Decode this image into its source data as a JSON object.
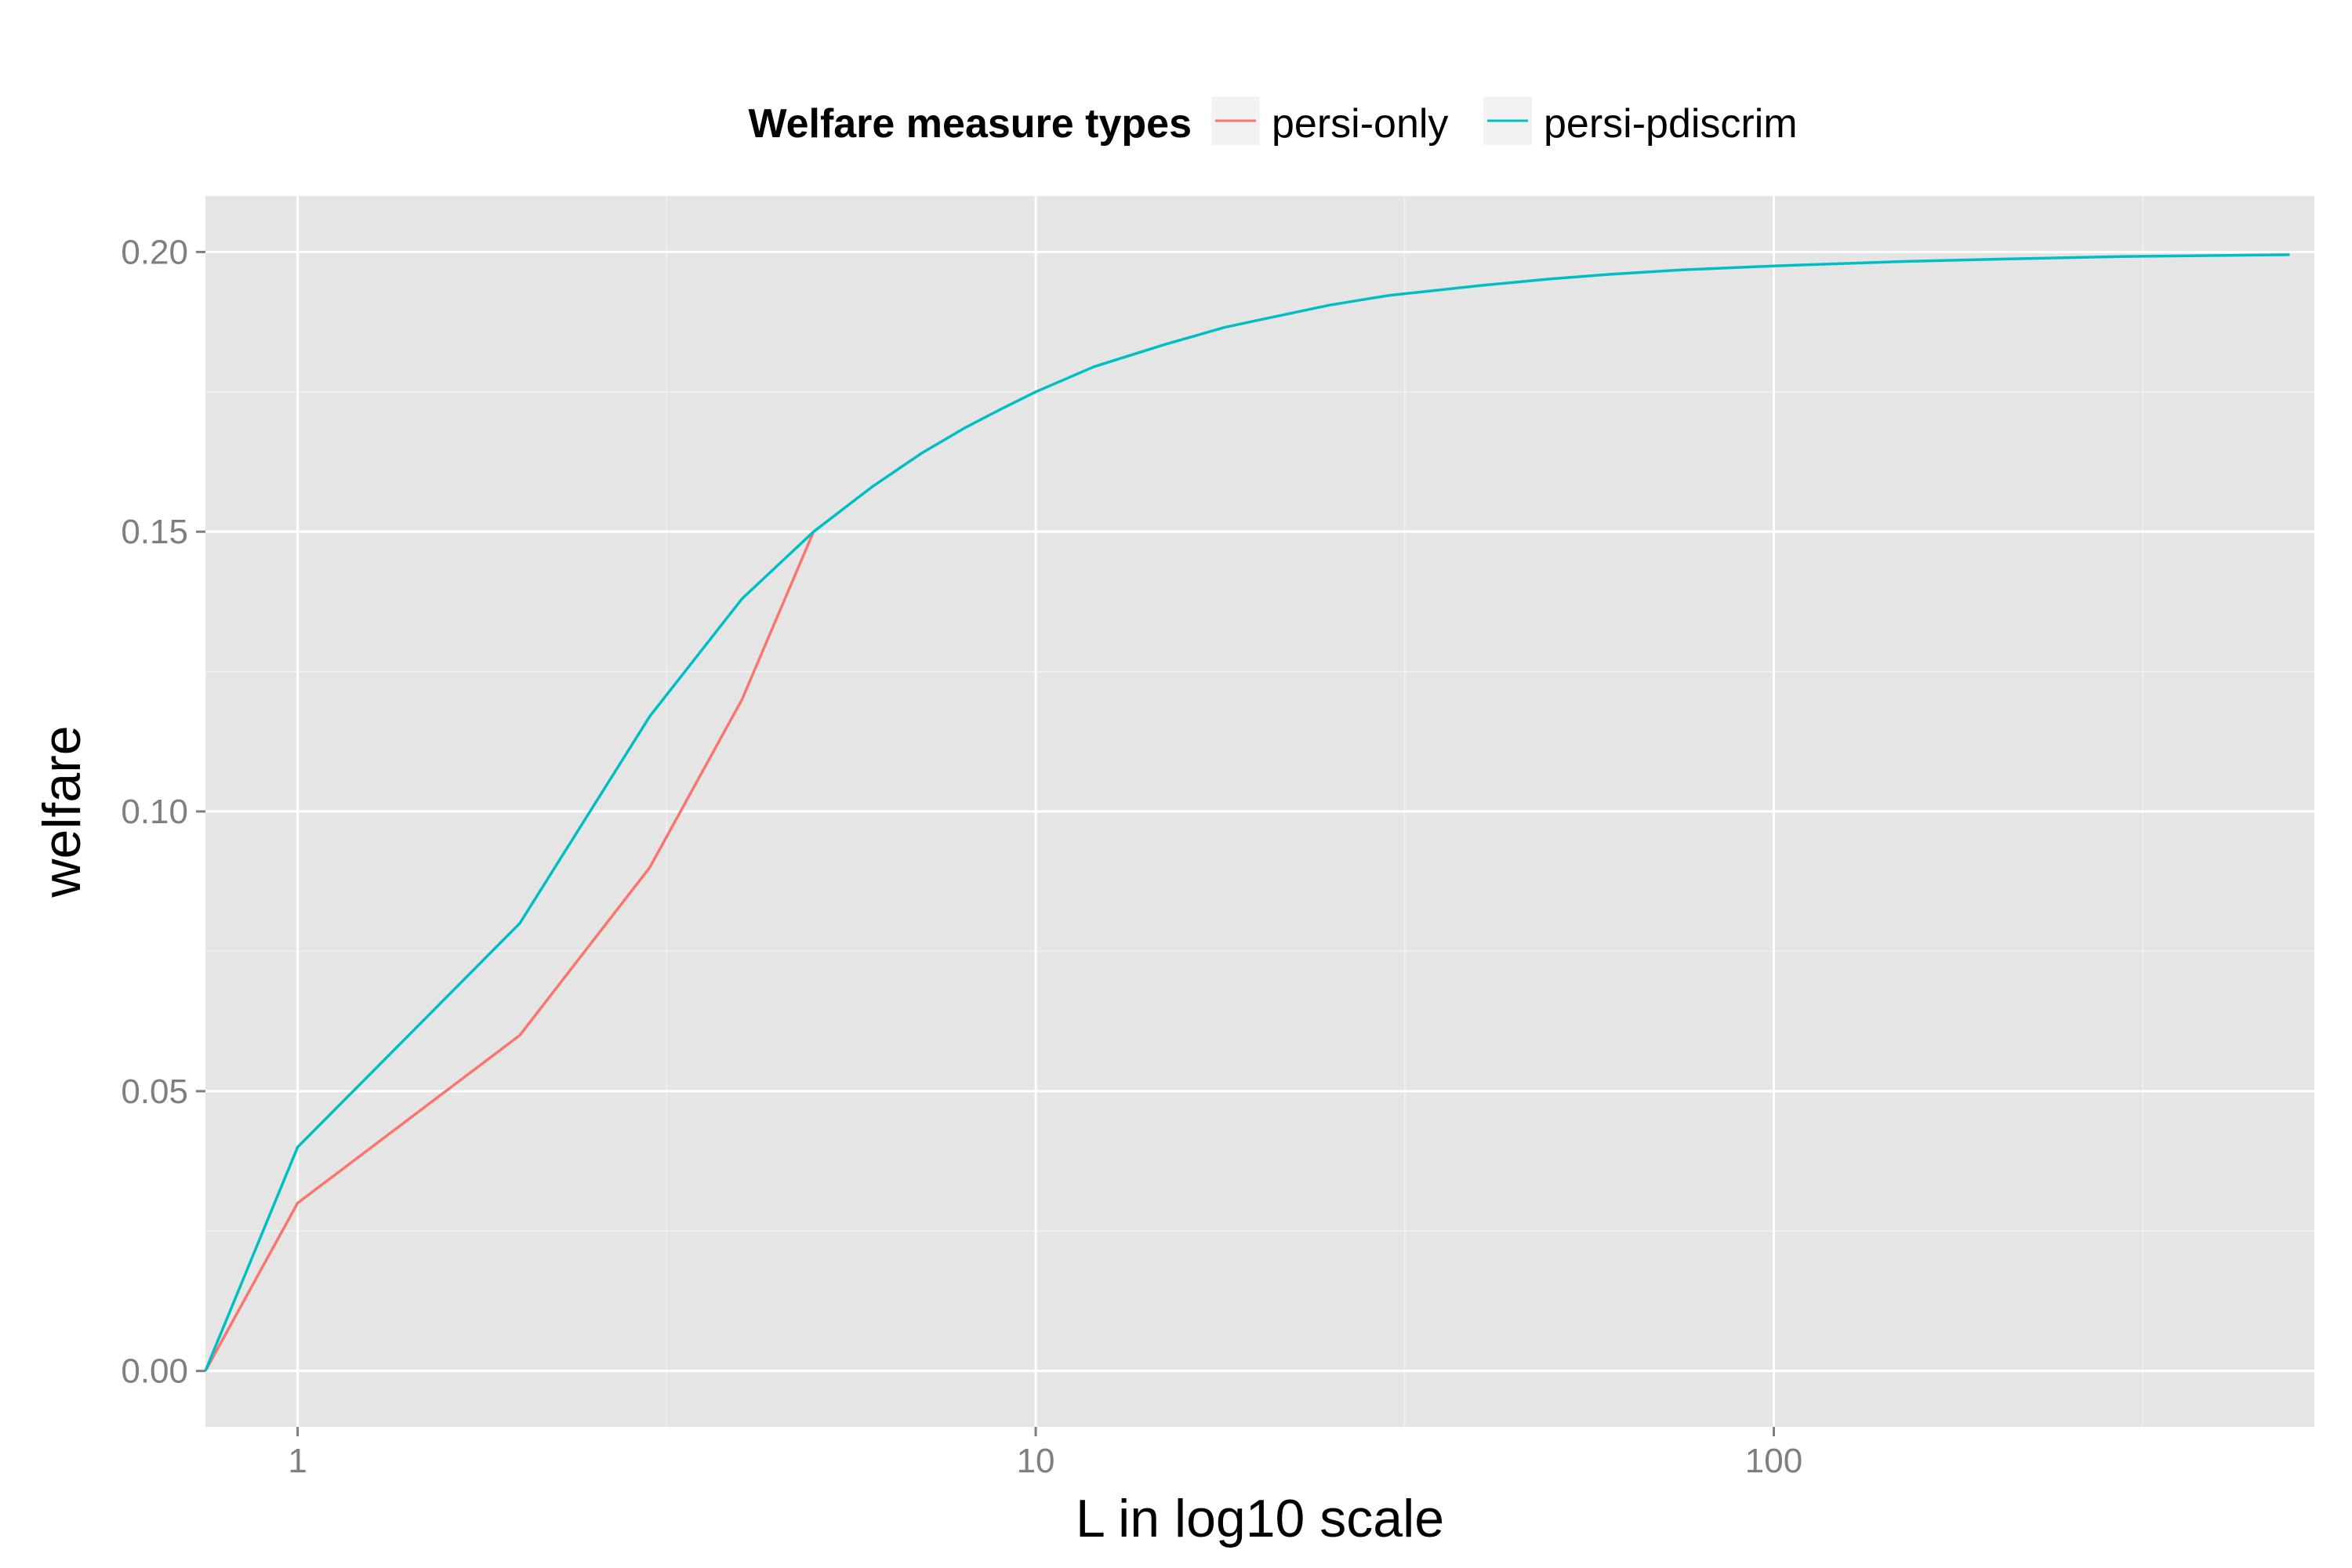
{
  "chart_data": {
    "type": "line",
    "title": "",
    "xlabel": "L in log10 scale",
    "ylabel": "welfare",
    "x_scale": "log10",
    "xlim": [
      0.75,
      540
    ],
    "ylim": [
      -0.01,
      0.21
    ],
    "x_ticks": [
      1,
      10,
      100
    ],
    "x_tick_labels": [
      "1",
      "10",
      "100"
    ],
    "y_ticks": [
      0.0,
      0.05,
      0.1,
      0.15,
      0.2
    ],
    "y_tick_labels": [
      "0.00",
      "0.05",
      "0.10",
      "0.15",
      "0.20"
    ],
    "grid": true,
    "legend": {
      "title": "Welfare measure types",
      "position": "top"
    },
    "series": [
      {
        "name": "persi-only",
        "color": "#F8766D",
        "x": [
          0.75,
          1,
          2,
          3,
          4,
          5
        ],
        "y": [
          0.0,
          0.03,
          0.06,
          0.09,
          0.12,
          0.15
        ]
      },
      {
        "name": "persi-pdiscrim",
        "color": "#00BFC4",
        "x": [
          0.75,
          1,
          2,
          3,
          4,
          5,
          6,
          7,
          8,
          9,
          10,
          12,
          15,
          18,
          20,
          25,
          30,
          40,
          50,
          60,
          75,
          100,
          150,
          200,
          300,
          500
        ],
        "y": [
          0.0,
          0.04,
          0.08,
          0.117,
          0.138,
          0.15,
          0.158,
          0.164,
          0.1685,
          0.172,
          0.175,
          0.1795,
          0.1835,
          0.1865,
          0.1878,
          0.1905,
          0.1922,
          0.194,
          0.1952,
          0.196,
          0.1968,
          0.1975,
          0.1983,
          0.1987,
          0.1992,
          0.1995
        ]
      }
    ]
  }
}
